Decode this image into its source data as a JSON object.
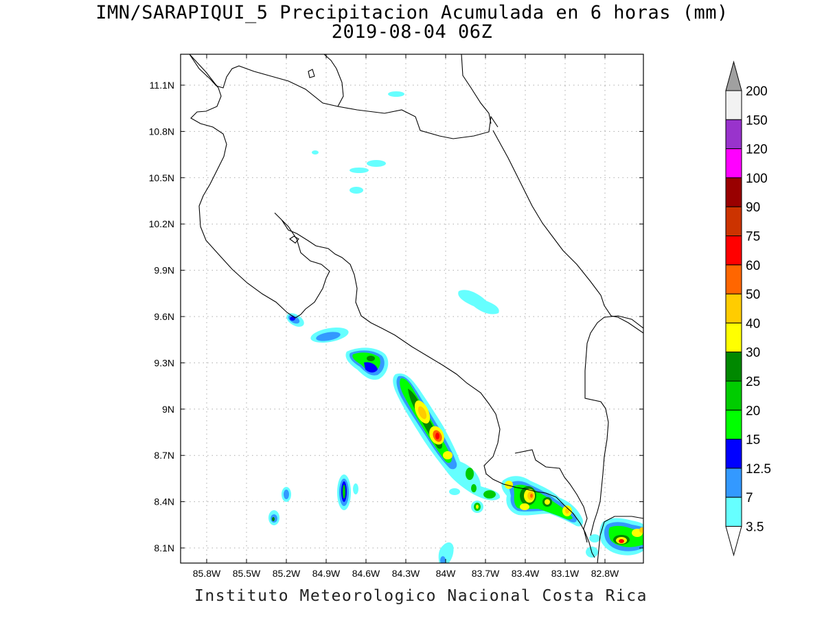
{
  "header": {
    "title": "IMN/SARAPIQUI_5 Precipitacion Acumulada en 6 horas (mm)",
    "subtitle": "2019-08-04 06Z"
  },
  "footer": {
    "credit": "Instituto Meteorologico Nacional Costa Rica"
  },
  "map": {
    "lon_ticks": [
      "85.8W",
      "85.5W",
      "85.2W",
      "84.9W",
      "84.6W",
      "84.3W",
      "84W",
      "83.7W",
      "83.4W",
      "83.1W",
      "82.8W"
    ],
    "lat_ticks": [
      "11.1N",
      "10.8N",
      "10.5N",
      "10.2N",
      "9.9N",
      "9.6N",
      "9.3N",
      "9N",
      "8.7N",
      "8.4N",
      "8.1N"
    ],
    "gridlines": "dotted",
    "coastline_color": "#000000"
  },
  "colorbar": {
    "labels": [
      "3.5",
      "7",
      "12.5",
      "15",
      "20",
      "25",
      "30",
      "40",
      "50",
      "60",
      "75",
      "90",
      "100",
      "120",
      "150",
      "200"
    ],
    "colors": [
      "#66ffff",
      "#3399ff",
      "#0000ff",
      "#00ff00",
      "#00cc00",
      "#008800",
      "#ffff00",
      "#ffcc00",
      "#ff6600",
      "#ff0000",
      "#cc3300",
      "#990000",
      "#ff00ff",
      "#9933cc",
      "#f2f2f2"
    ],
    "under_color": "#ffffff",
    "over_color": "#a0a0a0"
  }
}
